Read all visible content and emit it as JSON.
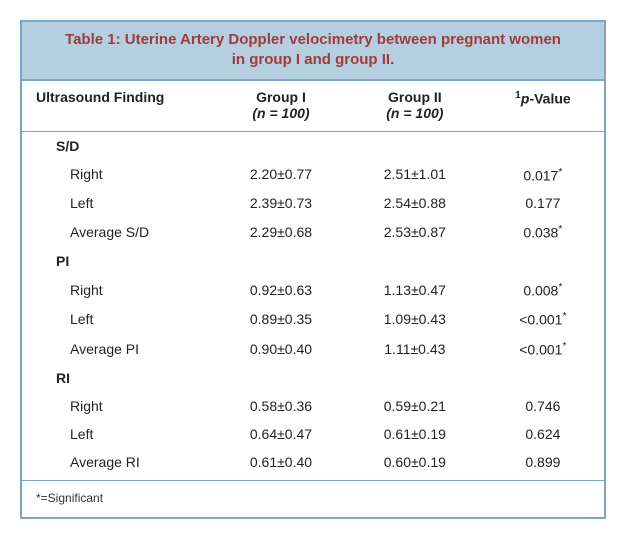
{
  "title": "Table 1: Uterine Artery Doppler velocimetry between pregnant women in group I and group II.",
  "columns": {
    "c0": "Ultrasound Finding",
    "c1_line1": "Group I",
    "c1_line2": "(n = 100)",
    "c2_line1": "Group II",
    "c2_line2": "(n = 100)",
    "c3_sup": "1",
    "c3_ital": "p",
    "c3_rest": "-Value"
  },
  "sections": [
    {
      "label": "S/D",
      "rows": [
        {
          "name": "Right",
          "g1": "2.20±0.77",
          "g2": "2.51±1.01",
          "p": "0.017",
          "sig": true
        },
        {
          "name": "Left",
          "g1": "2.39±0.73",
          "g2": "2.54±0.88",
          "p": "0.177",
          "sig": false
        },
        {
          "name": "Average S/D",
          "g1": "2.29±0.68",
          "g2": "2.53±0.87",
          "p": "0.038",
          "sig": true
        }
      ]
    },
    {
      "label": "PI",
      "rows": [
        {
          "name": "Right",
          "g1": "0.92±0.63",
          "g2": "1.13±0.47",
          "p": "0.008",
          "sig": true
        },
        {
          "name": "Left",
          "g1": "0.89±0.35",
          "g2": "1.09±0.43",
          "p": "<0.001",
          "sig": true
        },
        {
          "name": "Average PI",
          "g1": "0.90±0.40",
          "g2": "1.11±0.43",
          "p": "<0.001",
          "sig": true
        }
      ]
    },
    {
      "label": "RI",
      "rows": [
        {
          "name": "Right",
          "g1": "0.58±0.36",
          "g2": "0.59±0.21",
          "p": "0.746",
          "sig": false
        },
        {
          "name": "Left",
          "g1": "0.64±0.47",
          "g2": "0.61±0.19",
          "p": "0.624",
          "sig": false
        },
        {
          "name": "Average RI",
          "g1": "0.61±0.40",
          "g2": "0.60±0.19",
          "p": "0.899",
          "sig": false
        }
      ]
    }
  ],
  "footnote": "*=Significant",
  "colors": {
    "border": "#7aa7c2",
    "title_bg": "#b3cfe0",
    "title_text": "#a33a3a"
  },
  "col_widths": [
    "33%",
    "23%",
    "23%",
    "21%"
  ]
}
